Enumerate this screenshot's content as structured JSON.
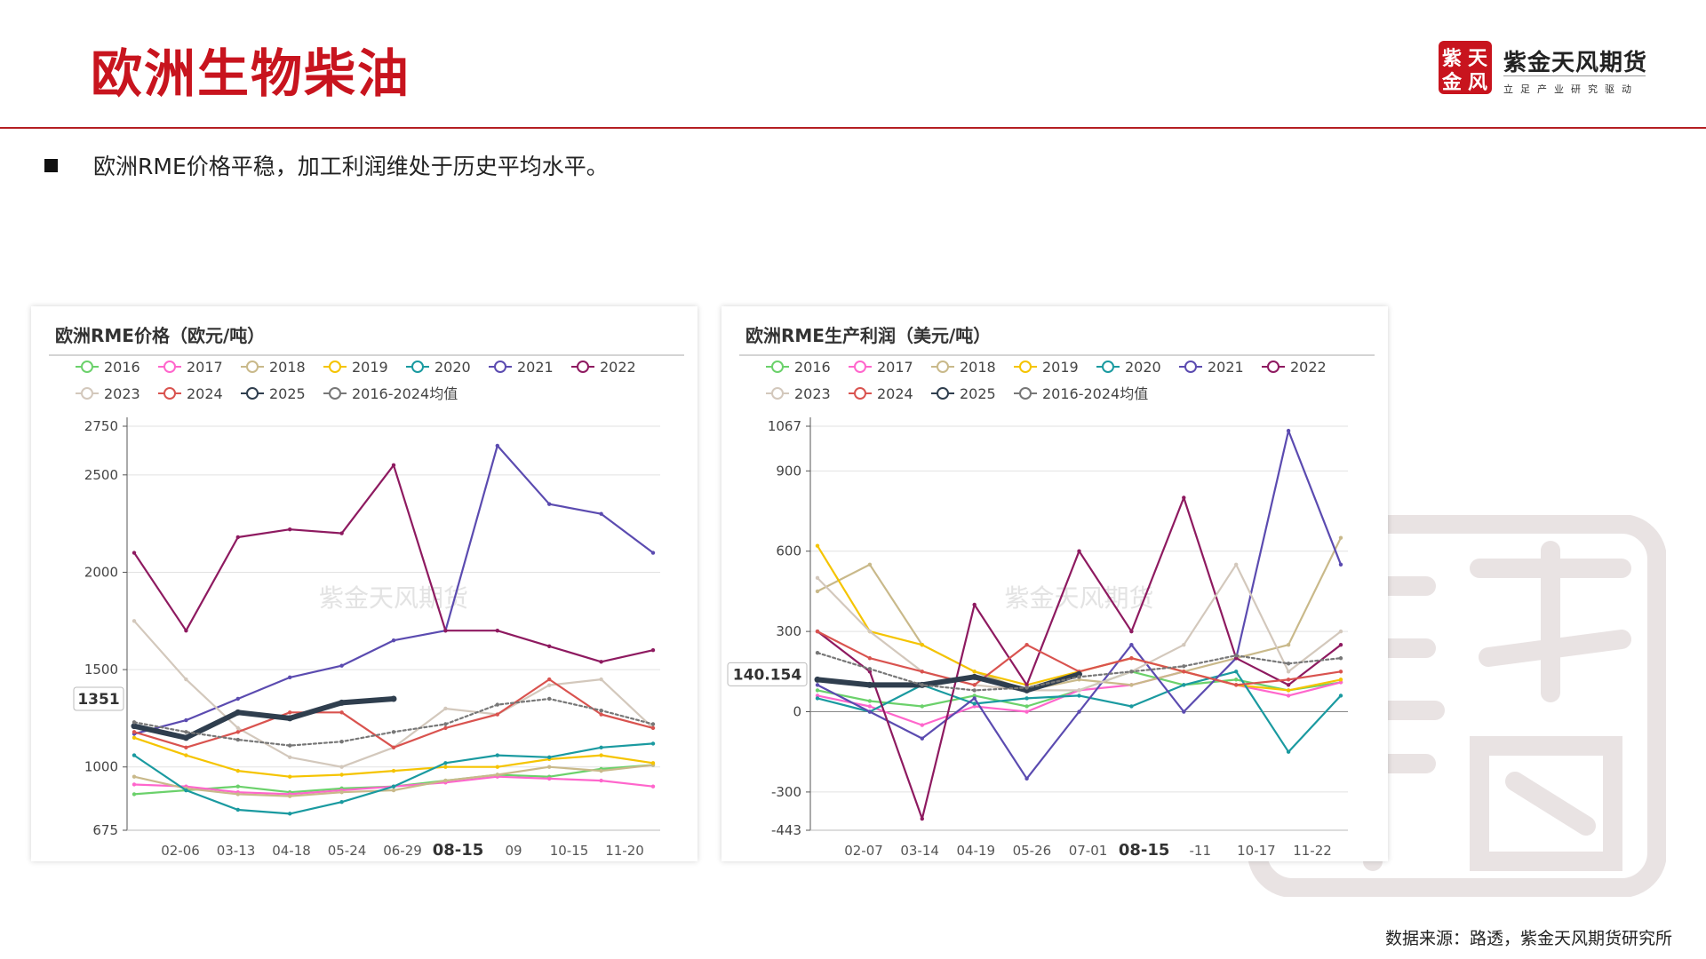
{
  "header": {
    "title": "欧洲生物柴油",
    "bullet": "欧洲RME价格平稳，加工利润维处于历史平均水平。",
    "source": "数据来源：路透，紫金天风期货研究所"
  },
  "logo": {
    "name": "紫金天风期货",
    "slogan": "立足产业研究驱动",
    "seal_chars": [
      "紫",
      "天",
      "金",
      "风"
    ]
  },
  "colors": {
    "accent": "#c8141e",
    "series": {
      "2016": "#6bd16b",
      "2017": "#ff66cc",
      "2018": "#c9b98a",
      "2019": "#f5c400",
      "2020": "#1a9aa0",
      "2021": "#5b4bb0",
      "2022": "#8e1a60",
      "2023": "#d3c8bc",
      "2024": "#d9534f",
      "2025": "#2f3e4e",
      "2016-2024均值": "#777777"
    }
  },
  "chart_data": [
    {
      "type": "line",
      "title": "欧洲RME价格（欧元/吨）",
      "watermark": "紫金天风期货",
      "y_ticks": [
        2750,
        2500,
        2000,
        1500,
        1000,
        675
      ],
      "ylim": [
        675,
        2750
      ],
      "x_ticks": [
        "02-06",
        "03-13",
        "04-18",
        "05-24",
        "06-29",
        "08-15",
        "09",
        "10-15",
        "11-20"
      ],
      "current_x_label": "08-15",
      "current_value_label": "1351",
      "legend": [
        "2016",
        "2017",
        "2018",
        "2019",
        "2020",
        "2021",
        "2022",
        "2023",
        "2024",
        "2025",
        "2016-2024均值"
      ],
      "legend_position": "top",
      "x_positions": [
        0,
        0.1,
        0.2,
        0.3,
        0.4,
        0.5,
        0.6,
        0.7,
        0.8,
        0.9,
        1.0
      ],
      "series": [
        {
          "name": "2016",
          "values": [
            860,
            880,
            900,
            870,
            890,
            900,
            930,
            960,
            950,
            990,
            1010
          ]
        },
        {
          "name": "2017",
          "values": [
            910,
            900,
            870,
            860,
            880,
            900,
            920,
            950,
            940,
            930,
            900
          ]
        },
        {
          "name": "2018",
          "values": [
            950,
            890,
            860,
            850,
            870,
            880,
            930,
            960,
            1000,
            980,
            1010
          ]
        },
        {
          "name": "2019",
          "values": [
            1150,
            1060,
            980,
            950,
            960,
            980,
            1000,
            1000,
            1040,
            1060,
            1020
          ]
        },
        {
          "name": "2020",
          "values": [
            1060,
            880,
            780,
            760,
            820,
            900,
            1020,
            1060,
            1050,
            1100,
            1120
          ]
        },
        {
          "name": "2021",
          "values": [
            1170,
            1240,
            1350,
            1460,
            1520,
            1650,
            1700,
            2650,
            2350,
            2300,
            2100
          ]
        },
        {
          "name": "2022",
          "values": [
            2100,
            1700,
            2180,
            2220,
            2200,
            2550,
            1700,
            1700,
            1620,
            1540,
            1600
          ]
        },
        {
          "name": "2023",
          "values": [
            1750,
            1450,
            1200,
            1050,
            1000,
            1100,
            1300,
            1270,
            1420,
            1450,
            1200
          ]
        },
        {
          "name": "2024",
          "values": [
            1180,
            1100,
            1180,
            1280,
            1280,
            1100,
            1200,
            1270,
            1450,
            1270,
            1200
          ]
        },
        {
          "name": "2025",
          "values": [
            1210,
            1150,
            1280,
            1250,
            1330,
            1350,
            null,
            null,
            null,
            null,
            null
          ]
        },
        {
          "name": "2016-2024均值",
          "values": [
            1230,
            1180,
            1140,
            1110,
            1130,
            1180,
            1220,
            1320,
            1350,
            1290,
            1220
          ]
        }
      ]
    },
    {
      "type": "line",
      "title": "欧洲RME生产利润（美元/吨）",
      "watermark": "紫金天风期货",
      "y_ticks": [
        1067,
        900,
        600,
        300,
        0,
        -300,
        -443
      ],
      "ylim": [
        -443,
        1067
      ],
      "x_ticks": [
        "02-07",
        "03-14",
        "04-19",
        "05-26",
        "07-01",
        "08-15",
        "-11",
        "10-17",
        "11-22"
      ],
      "current_x_label": "08-15",
      "current_value_label": "140.154",
      "legend": [
        "2016",
        "2017",
        "2018",
        "2019",
        "2020",
        "2021",
        "2022",
        "2023",
        "2024",
        "2025",
        "2016-2024均值"
      ],
      "legend_position": "top",
      "x_positions": [
        0,
        0.1,
        0.2,
        0.3,
        0.4,
        0.5,
        0.6,
        0.7,
        0.8,
        0.9,
        1.0
      ],
      "series": [
        {
          "name": "2016",
          "values": [
            80,
            40,
            20,
            60,
            20,
            80,
            150,
            100,
            120,
            80,
            110
          ]
        },
        {
          "name": "2017",
          "values": [
            60,
            20,
            -50,
            20,
            0,
            80,
            100,
            150,
            100,
            60,
            110
          ]
        },
        {
          "name": "2018",
          "values": [
            450,
            550,
            250,
            150,
            80,
            120,
            100,
            150,
            200,
            250,
            650
          ]
        },
        {
          "name": "2019",
          "values": [
            620,
            300,
            250,
            150,
            100,
            150,
            200,
            150,
            100,
            80,
            120
          ]
        },
        {
          "name": "2020",
          "values": [
            50,
            0,
            100,
            30,
            50,
            60,
            20,
            100,
            150,
            -150,
            60
          ]
        },
        {
          "name": "2021",
          "values": [
            100,
            0,
            -100,
            50,
            -250,
            0,
            250,
            0,
            200,
            1050,
            550
          ]
        },
        {
          "name": "2022",
          "values": [
            300,
            150,
            -400,
            400,
            100,
            600,
            300,
            800,
            200,
            100,
            250
          ]
        },
        {
          "name": "2023",
          "values": [
            500,
            300,
            150,
            100,
            80,
            80,
            150,
            250,
            550,
            150,
            300
          ]
        },
        {
          "name": "2024",
          "values": [
            300,
            200,
            150,
            100,
            250,
            150,
            200,
            150,
            100,
            120,
            150
          ]
        },
        {
          "name": "2025",
          "values": [
            120,
            100,
            100,
            130,
            80,
            140,
            null,
            null,
            null,
            null,
            null
          ]
        },
        {
          "name": "2016-2024均值",
          "values": [
            220,
            160,
            100,
            80,
            90,
            130,
            150,
            170,
            210,
            180,
            200
          ]
        }
      ]
    }
  ]
}
